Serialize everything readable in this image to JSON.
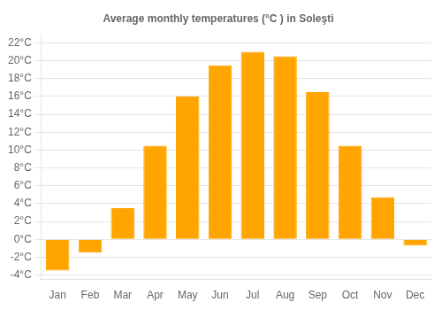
{
  "chart_data": {
    "type": "bar",
    "title": "Average monthly temperatures (°C ) in Soleşti",
    "categories": [
      "Jan",
      "Feb",
      "Mar",
      "Apr",
      "May",
      "Jun",
      "Jul",
      "Aug",
      "Sep",
      "Oct",
      "Nov",
      "Dec"
    ],
    "values": [
      -3.5,
      -1.5,
      3.5,
      10.5,
      16.0,
      19.5,
      21.0,
      20.5,
      16.5,
      10.5,
      4.7,
      -0.7
    ],
    "color": "#FFA500",
    "ylim": [
      -4.5,
      23
    ],
    "yticks": [
      {
        "value": -4,
        "label": "-4°C"
      },
      {
        "value": -2,
        "label": "-2°C"
      },
      {
        "value": 0,
        "label": "0°C"
      },
      {
        "value": 2,
        "label": "2°C"
      },
      {
        "value": 4,
        "label": "4°C"
      },
      {
        "value": 6,
        "label": "6°C"
      },
      {
        "value": 8,
        "label": "8°C"
      },
      {
        "value": 10,
        "label": "10°C"
      },
      {
        "value": 12,
        "label": "12°C"
      },
      {
        "value": 14,
        "label": "14°C"
      },
      {
        "value": 16,
        "label": "16°C"
      },
      {
        "value": 18,
        "label": "18°C"
      },
      {
        "value": 20,
        "label": "20°C"
      },
      {
        "value": 22,
        "label": "22°C"
      }
    ],
    "grid": true
  }
}
